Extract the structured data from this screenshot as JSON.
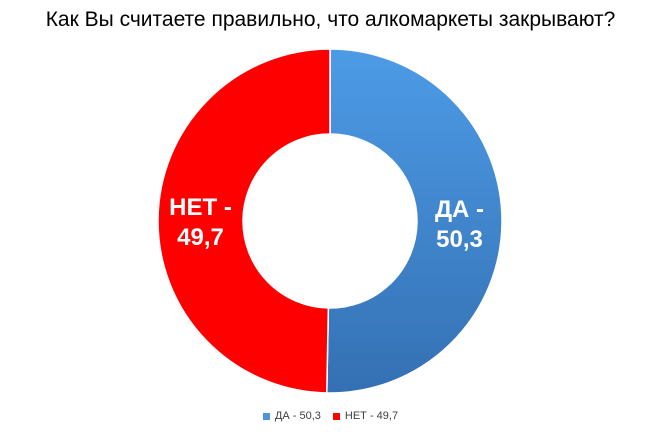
{
  "chart_data": {
    "type": "pie",
    "title": "Как Вы считаете правильно, что алкомаркеты закрывают?",
    "slices": [
      {
        "name": "ДА",
        "value": 50.3,
        "value_label": "50,3",
        "label_line1": "ДА -",
        "label_line2": "50,3",
        "legend": "ДА - 50,3",
        "color": "#3f86cf"
      },
      {
        "name": "НЕТ",
        "value": 49.7,
        "value_label": "49,7",
        "label_line1": "НЕТ -",
        "label_line2": "49,7",
        "legend": "НЕТ - 49,7",
        "color": "#ff0000"
      }
    ],
    "donut": true,
    "legend_position": "bottom"
  }
}
